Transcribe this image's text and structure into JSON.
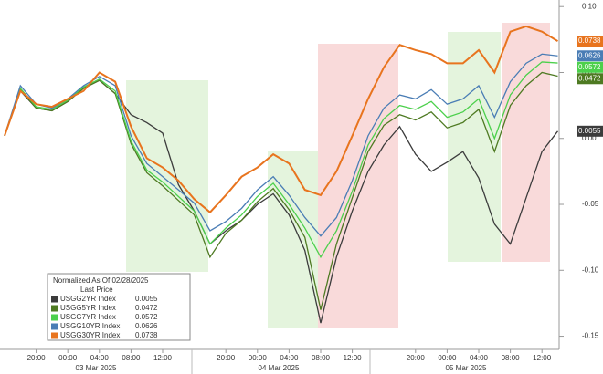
{
  "chart_data": {
    "type": "line",
    "categories": [
      null,
      null,
      "20:00",
      null,
      "00:00",
      null,
      "04:00",
      null,
      "08:00",
      null,
      "12:00",
      null,
      null,
      null,
      "20:00",
      null,
      "00:00",
      null,
      "04:00",
      null,
      "08:00",
      null,
      "12:00",
      null,
      null,
      null,
      "20:00",
      null,
      "00:00",
      null,
      "04:00",
      null,
      "08:00",
      null,
      "12:00",
      null
    ],
    "dates": [
      "03 Mar 2025",
      "04 Mar 2025",
      "05 Mar 2025"
    ],
    "ylim": [
      -0.16,
      0.105
    ],
    "yticks": [
      {
        "value": 0.1,
        "label": "0.10"
      },
      {
        "value": 0.05,
        "label": "0.05"
      },
      {
        "value": 0,
        "label": "0.00"
      },
      {
        "value": -0.05,
        "label": "-0.05"
      },
      {
        "value": -0.1,
        "label": "-0.10"
      },
      {
        "value": -0.15,
        "label": "-0.15"
      }
    ],
    "legend_title": "Normalized As Of 02/28/2025",
    "legend_subtitle": "Last Price",
    "series": [
      {
        "name": "USGG2YR Index",
        "color": "#3c3c3c",
        "last_value": 0.0055,
        "values": [
          0.002,
          0.036,
          0.023,
          0.021,
          0.028,
          0.038,
          0.044,
          0.034,
          0.018,
          0.012,
          0.004,
          -0.035,
          -0.055,
          -0.08,
          -0.07,
          -0.062,
          -0.05,
          -0.042,
          -0.058,
          -0.085,
          -0.14,
          -0.09,
          -0.055,
          -0.025,
          -0.005,
          0.009,
          -0.012,
          -0.025,
          -0.018,
          -0.01,
          -0.03,
          -0.065,
          -0.08,
          -0.045,
          -0.01,
          0.0055
        ]
      },
      {
        "name": "USGG5YR Index",
        "color": "#4e7a22",
        "last_value": 0.0472,
        "values": [
          0.002,
          0.037,
          0.023,
          0.021,
          0.028,
          0.038,
          0.044,
          0.034,
          -0.004,
          -0.026,
          -0.036,
          -0.047,
          -0.058,
          -0.09,
          -0.072,
          -0.062,
          -0.048,
          -0.038,
          -0.054,
          -0.075,
          -0.13,
          -0.08,
          -0.045,
          -0.01,
          0.01,
          0.018,
          0.014,
          0.02,
          0.008,
          0.012,
          0.022,
          -0.01,
          0.025,
          0.04,
          0.05,
          0.0472
        ]
      },
      {
        "name": "USGG7YR Index",
        "color": "#4cd04c",
        "last_value": 0.0572,
        "values": [
          0.002,
          0.038,
          0.024,
          0.022,
          0.029,
          0.039,
          0.045,
          0.036,
          -0.002,
          -0.024,
          -0.033,
          -0.044,
          -0.055,
          -0.08,
          -0.068,
          -0.058,
          -0.044,
          -0.034,
          -0.05,
          -0.068,
          -0.09,
          -0.07,
          -0.04,
          -0.005,
          0.015,
          0.025,
          0.022,
          0.028,
          0.016,
          0.02,
          0.03,
          0,
          0.033,
          0.048,
          0.058,
          0.0572
        ]
      },
      {
        "name": "USGG10YR Index",
        "color": "#4a7db5",
        "last_value": 0.0626,
        "values": [
          0.002,
          0.04,
          0.026,
          0.023,
          0.03,
          0.04,
          0.047,
          0.04,
          0.002,
          -0.019,
          -0.029,
          -0.039,
          -0.049,
          -0.07,
          -0.063,
          -0.053,
          -0.039,
          -0.029,
          -0.043,
          -0.06,
          -0.074,
          -0.06,
          -0.032,
          0.002,
          0.023,
          0.033,
          0.03,
          0.037,
          0.026,
          0.03,
          0.04,
          0.016,
          0.043,
          0.057,
          0.064,
          0.0626
        ]
      },
      {
        "name": "USGG30YR Index",
        "color": "#e8741e",
        "last_value": 0.0738,
        "values": [
          0.002,
          0.036,
          0.026,
          0.024,
          0.03,
          0.036,
          0.05,
          0.043,
          0.009,
          -0.015,
          -0.022,
          -0.032,
          -0.046,
          -0.056,
          -0.043,
          -0.029,
          -0.022,
          -0.012,
          -0.019,
          -0.039,
          -0.043,
          -0.025,
          0.002,
          0.03,
          0.054,
          0.071,
          0.067,
          0.064,
          0.057,
          0.057,
          0.067,
          0.05,
          0.081,
          0.085,
          0.081,
          0.0738
        ]
      }
    ]
  }
}
